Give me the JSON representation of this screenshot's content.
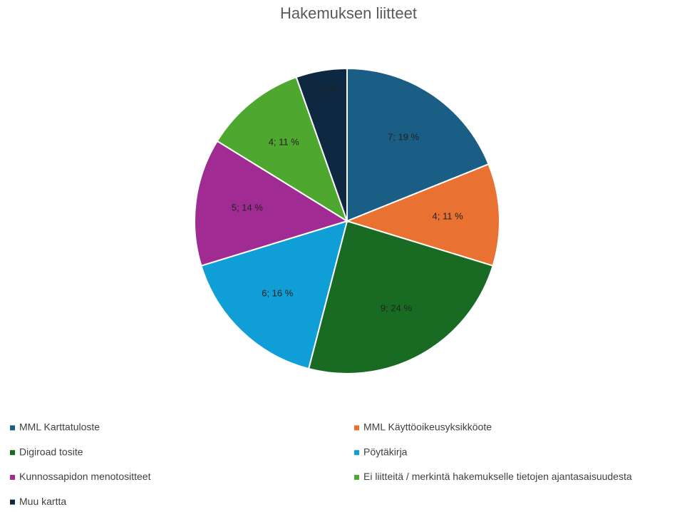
{
  "chart_data": {
    "type": "pie",
    "title": "Hakemuksen liitteet",
    "categories": [
      "MML Karttatuloste",
      "MML Käyttöoikeusyksikköote",
      "Digiroad tosite",
      "Pöytäkirja",
      "Kunnossapidon menotositteet",
      "Ei liitteitä / merkintä hakemukselle tietojen ajantasaisuudesta",
      "Muu kartta"
    ],
    "values": [
      7,
      4,
      9,
      6,
      5,
      4,
      2
    ],
    "value_labels": [
      "7; 19 %",
      "4; 11 %",
      "9; 24 %",
      "6; 16 %",
      "5; 14 %",
      "4; 11 %",
      "2; 5 %"
    ],
    "colors": [
      "#1a5e86",
      "#e97132",
      "#196b24",
      "#0f9ed5",
      "#a02b93",
      "#4ea72e",
      "#0e2841"
    ],
    "legend": "bottom"
  }
}
